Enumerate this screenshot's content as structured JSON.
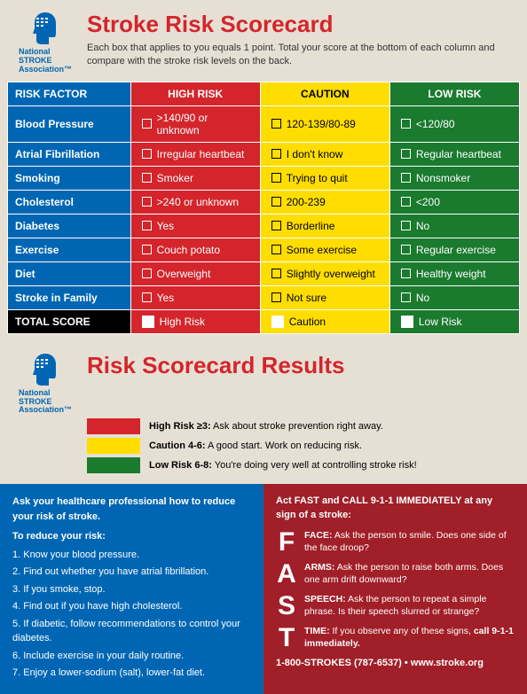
{
  "logo": {
    "line1": "National",
    "line2": "STROKE",
    "line3": "Association",
    "color": "#0066b3"
  },
  "top": {
    "title": "Stroke Risk Scorecard",
    "title_color": "#d4252c",
    "subtitle": "Each box that applies to you equals 1 point. Total your score at the bottom of each column and compare with the stroke risk levels on the back."
  },
  "table": {
    "headers": {
      "factor": "RISK FACTOR",
      "high": "HIGH RISK",
      "caution": "CAUTION",
      "low": "LOW RISK"
    },
    "colors": {
      "factor_bg": "#0066b3",
      "high_bg": "#d4252c",
      "caution_bg": "#ffdd00",
      "low_bg": "#1a7a2e",
      "total_bg": "#000000",
      "border": "#ffffff"
    },
    "rows": [
      {
        "factor": "Blood Pressure",
        "high": ">140/90 or unknown",
        "caution": "120-139/80-89",
        "low": "<120/80"
      },
      {
        "factor": "Atrial Fibrillation",
        "high": "Irregular heartbeat",
        "caution": "I don't know",
        "low": "Regular heartbeat"
      },
      {
        "factor": "Smoking",
        "high": "Smoker",
        "caution": "Trying to quit",
        "low": "Nonsmoker"
      },
      {
        "factor": "Cholesterol",
        "high": ">240 or unknown",
        "caution": "200-239",
        "low": "<200"
      },
      {
        "factor": "Diabetes",
        "high": "Yes",
        "caution": "Borderline",
        "low": "No"
      },
      {
        "factor": "Exercise",
        "high": "Couch potato",
        "caution": "Some exercise",
        "low": "Regular exercise"
      },
      {
        "factor": "Diet",
        "high": "Overweight",
        "caution": "Slightly overweight",
        "low": "Healthy weight"
      },
      {
        "factor": "Stroke in Family",
        "high": "Yes",
        "caution": "Not sure",
        "low": "No"
      }
    ],
    "total": {
      "factor": "TOTAL SCORE",
      "high": "High Risk",
      "caution": "Caution",
      "low": "Low Risk"
    }
  },
  "results": {
    "title": "Risk Scorecard Results",
    "title_color": "#d4252c",
    "items": [
      {
        "color": "#d4252c",
        "label": "High Risk ≥3:",
        "text": "Ask about stroke prevention right away."
      },
      {
        "color": "#ffdd00",
        "label": "Caution 4-6:",
        "text": "A good start. Work on reducing risk."
      },
      {
        "color": "#1a7a2e",
        "label": "Low Risk 6-8:",
        "text": "You're doing very well at controlling stroke risk!"
      }
    ]
  },
  "reduce": {
    "bg": "#0066b3",
    "lead": "Ask your healthcare professional how to reduce your risk of stroke.",
    "sub": "To reduce your risk:",
    "items": [
      "1. Know your blood pressure.",
      "2. Find out whether you have atrial fibrillation.",
      "3. If you smoke, stop.",
      "4. Find out if you have high cholesterol.",
      "5. If diabetic, follow recommendations to control your diabetes.",
      "6. Include exercise in your daily routine.",
      "7. Enjoy a lower-sodium (salt), lower-fat diet."
    ]
  },
  "fast": {
    "bg": "#a01f28",
    "lead": "Act FAST and CALL 9-1-1 IMMEDIATELY at any sign of a stroke:",
    "rows": [
      {
        "letter": "F",
        "label": "FACE:",
        "text": "Ask the person to smile. Does one side of the face droop?"
      },
      {
        "letter": "A",
        "label": "ARMS:",
        "text": "Ask the person to raise both arms. Does one arm drift downward?"
      },
      {
        "letter": "S",
        "label": "SPEECH:",
        "text": "Ask the person to repeat a simple phrase. Is their speech slurred or strange?"
      },
      {
        "letter": "T",
        "label": "TIME:",
        "text_pre": "If you observe any of these signs, ",
        "text_bold": "call 9-1-1 immediately."
      }
    ],
    "contact": "1-800-STROKES (787-6537) • www.stroke.org"
  }
}
